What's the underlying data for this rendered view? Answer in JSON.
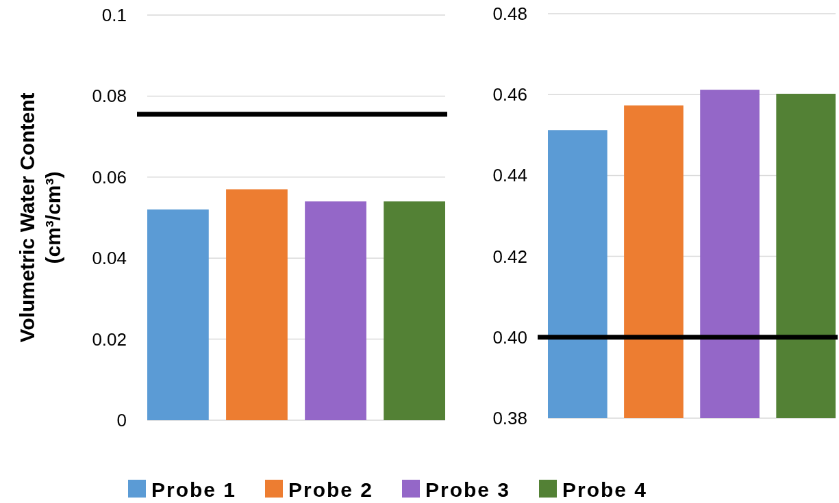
{
  "chart_data": [
    {
      "type": "bar",
      "ylabel": "Volumetric Water Content (cm³/cm³)",
      "categories": [
        null
      ],
      "series": [
        {
          "name": "Probe 1",
          "color": "#5b9bd5",
          "values": [
            0.052
          ]
        },
        {
          "name": "Probe 2",
          "color": "#ed7d31",
          "values": [
            0.057
          ]
        },
        {
          "name": "Probe 3",
          "color": "#9467c8",
          "values": [
            0.054
          ]
        },
        {
          "name": "Probe 4",
          "color": "#538135",
          "values": [
            0.054
          ]
        }
      ],
      "ylim": [
        0,
        0.1
      ],
      "yticks": [
        0,
        0.02,
        0.04,
        0.06,
        0.08,
        0.1
      ],
      "grid": "y",
      "legend": "bottom",
      "ref_lines": [
        {
          "axis": "y",
          "value": 0.0755,
          "color": "#000000"
        }
      ]
    },
    {
      "type": "bar",
      "categories": [
        null
      ],
      "series": [
        {
          "color": "#5b9bd5",
          "values": [
            0.4512
          ]
        },
        {
          "color": "#ed7d31",
          "values": [
            0.4573
          ]
        },
        {
          "color": "#9467c8",
          "values": [
            0.4612
          ]
        },
        {
          "color": "#538135",
          "values": [
            0.4602
          ]
        }
      ],
      "ylim": [
        0.38,
        0.48
      ],
      "yticks": [
        0.38,
        {
          "value": 0.4,
          "label": "0.40"
        },
        0.42,
        0.44,
        0.46,
        0.48
      ],
      "grid": "y",
      "ref_lines": [
        {
          "axis": "y",
          "value": 0.4,
          "color": "#000000"
        }
      ]
    }
  ]
}
